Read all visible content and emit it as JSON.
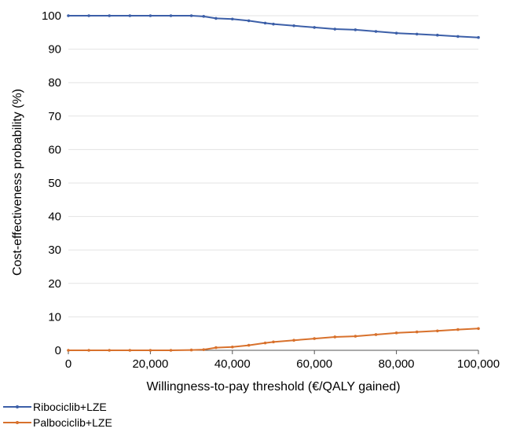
{
  "chart_data": {
    "type": "line",
    "xlabel": "Willingness-to-pay threshold (€/QALY gained)",
    "ylabel": "Cost-effectiveness probability (%)",
    "xlim": [
      0,
      100000
    ],
    "ylim": [
      0,
      100
    ],
    "x_ticks": [
      0,
      20000,
      40000,
      60000,
      80000,
      100000
    ],
    "x_tick_labels": [
      "0",
      "20,000",
      "40,000",
      "60,000",
      "80,000",
      "100,000"
    ],
    "y_ticks": [
      0,
      10,
      20,
      30,
      40,
      50,
      60,
      70,
      80,
      90,
      100
    ],
    "y_tick_labels": [
      "0",
      "10",
      "20",
      "30",
      "40",
      "50",
      "60",
      "70",
      "80",
      "90",
      "100"
    ],
    "grid": "horizontal",
    "legend_position": "bottom-left",
    "series": [
      {
        "name": "Ribociclib+LZE",
        "color": "#3c5fa8",
        "points": [
          [
            0,
            100
          ],
          [
            5000,
            100
          ],
          [
            10000,
            100
          ],
          [
            15000,
            100
          ],
          [
            20000,
            100
          ],
          [
            25000,
            100
          ],
          [
            30000,
            100
          ],
          [
            33000,
            99.8
          ],
          [
            36000,
            99.2
          ],
          [
            40000,
            99.0
          ],
          [
            44000,
            98.5
          ],
          [
            48000,
            97.8
          ],
          [
            50000,
            97.5
          ],
          [
            55000,
            97.0
          ],
          [
            60000,
            96.5
          ],
          [
            65000,
            96.0
          ],
          [
            70000,
            95.8
          ],
          [
            75000,
            95.3
          ],
          [
            80000,
            94.8
          ],
          [
            85000,
            94.5
          ],
          [
            90000,
            94.2
          ],
          [
            95000,
            93.8
          ],
          [
            100000,
            93.5
          ]
        ]
      },
      {
        "name": "Palbociclib+LZE",
        "color": "#d8712c",
        "points": [
          [
            0,
            0
          ],
          [
            5000,
            0
          ],
          [
            10000,
            0
          ],
          [
            15000,
            0
          ],
          [
            20000,
            0
          ],
          [
            25000,
            0
          ],
          [
            30000,
            0.1
          ],
          [
            33000,
            0.2
          ],
          [
            36000,
            0.8
          ],
          [
            40000,
            1.0
          ],
          [
            44000,
            1.5
          ],
          [
            48000,
            2.2
          ],
          [
            50000,
            2.5
          ],
          [
            55000,
            3.0
          ],
          [
            60000,
            3.5
          ],
          [
            65000,
            4.0
          ],
          [
            70000,
            4.2
          ],
          [
            75000,
            4.7
          ],
          [
            80000,
            5.2
          ],
          [
            85000,
            5.5
          ],
          [
            90000,
            5.8
          ],
          [
            95000,
            6.2
          ],
          [
            100000,
            6.5
          ]
        ]
      }
    ]
  }
}
